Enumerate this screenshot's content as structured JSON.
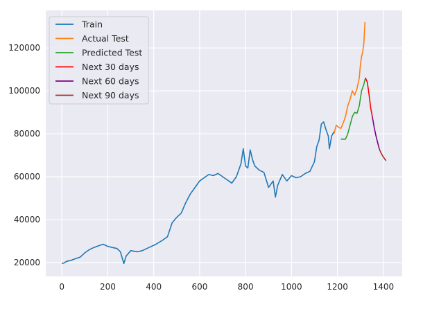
{
  "chart_data": {
    "type": "line",
    "title": "",
    "xlabel": "",
    "ylabel": "",
    "xlim": [
      -70,
      1482
    ],
    "ylim": [
      13500,
      137500
    ],
    "grid": true,
    "legend_placement": "top-left",
    "x_ticks": [
      0,
      200,
      400,
      600,
      800,
      1000,
      1200,
      1400
    ],
    "y_ticks": [
      20000,
      40000,
      60000,
      80000,
      100000,
      120000
    ],
    "series": [
      {
        "name": "Train",
        "color": "#1f77b4",
        "points": [
          [
            0,
            19500
          ],
          [
            10,
            19800
          ],
          [
            20,
            20500
          ],
          [
            40,
            21000
          ],
          [
            60,
            21800
          ],
          [
            80,
            22500
          ],
          [
            100,
            24500
          ],
          [
            120,
            26000
          ],
          [
            140,
            27000
          ],
          [
            160,
            27800
          ],
          [
            180,
            28500
          ],
          [
            200,
            27500
          ],
          [
            220,
            27000
          ],
          [
            240,
            26500
          ],
          [
            255,
            25000
          ],
          [
            270,
            19500
          ],
          [
            280,
            23000
          ],
          [
            300,
            25500
          ],
          [
            330,
            25000
          ],
          [
            350,
            25500
          ],
          [
            380,
            27000
          ],
          [
            410,
            28500
          ],
          [
            440,
            30500
          ],
          [
            460,
            32000
          ],
          [
            480,
            38500
          ],
          [
            500,
            41000
          ],
          [
            520,
            43000
          ],
          [
            540,
            48000
          ],
          [
            560,
            52000
          ],
          [
            580,
            55000
          ],
          [
            600,
            58000
          ],
          [
            620,
            59500
          ],
          [
            640,
            61000
          ],
          [
            660,
            60500
          ],
          [
            680,
            61500
          ],
          [
            700,
            60000
          ],
          [
            720,
            58500
          ],
          [
            740,
            57000
          ],
          [
            760,
            60000
          ],
          [
            780,
            66000
          ],
          [
            790,
            73000
          ],
          [
            800,
            65000
          ],
          [
            810,
            64000
          ],
          [
            820,
            72500
          ],
          [
            830,
            68000
          ],
          [
            840,
            65000
          ],
          [
            860,
            63000
          ],
          [
            880,
            62000
          ],
          [
            900,
            55000
          ],
          [
            920,
            58000
          ],
          [
            930,
            50500
          ],
          [
            940,
            56000
          ],
          [
            960,
            61000
          ],
          [
            980,
            58000
          ],
          [
            1000,
            60500
          ],
          [
            1020,
            59500
          ],
          [
            1040,
            60000
          ],
          [
            1060,
            61500
          ],
          [
            1080,
            62500
          ],
          [
            1100,
            67000
          ],
          [
            1110,
            74000
          ],
          [
            1120,
            77000
          ],
          [
            1130,
            84500
          ],
          [
            1140,
            85500
          ],
          [
            1150,
            82000
          ],
          [
            1160,
            79000
          ],
          [
            1165,
            73000
          ],
          [
            1175,
            79000
          ],
          [
            1185,
            81000
          ]
        ]
      },
      {
        "name": "Actual Test",
        "color": "#ff7f0e",
        "points": [
          [
            1185,
            80000
          ],
          [
            1195,
            84000
          ],
          [
            1205,
            83000
          ],
          [
            1215,
            82500
          ],
          [
            1225,
            85000
          ],
          [
            1235,
            88000
          ],
          [
            1245,
            93000
          ],
          [
            1255,
            96000
          ],
          [
            1265,
            100000
          ],
          [
            1275,
            98000
          ],
          [
            1285,
            101000
          ],
          [
            1295,
            106000
          ],
          [
            1300,
            112000
          ],
          [
            1305,
            116000
          ],
          [
            1310,
            118000
          ],
          [
            1315,
            122000
          ],
          [
            1320,
            132000
          ]
        ]
      },
      {
        "name": "Predicted Test",
        "color": "#2ca02c",
        "points": [
          [
            1215,
            77500
          ],
          [
            1235,
            77500
          ],
          [
            1245,
            80000
          ],
          [
            1255,
            84000
          ],
          [
            1265,
            88000
          ],
          [
            1275,
            90000
          ],
          [
            1285,
            89500
          ],
          [
            1295,
            93000
          ],
          [
            1305,
            100000
          ],
          [
            1315,
            103000
          ],
          [
            1322,
            106000
          ]
        ]
      },
      {
        "name": "Next 30 days",
        "color": "#ff0000",
        "points": [
          [
            1322,
            106000
          ],
          [
            1330,
            104000
          ],
          [
            1338,
            98000
          ],
          [
            1345,
            92000
          ],
          [
            1352,
            88000
          ]
        ]
      },
      {
        "name": "Next 60 days",
        "color": "#800080",
        "points": [
          [
            1352,
            88000
          ],
          [
            1360,
            83000
          ],
          [
            1368,
            79000
          ],
          [
            1376,
            75500
          ],
          [
            1382,
            73000
          ]
        ]
      },
      {
        "name": "Next 90 days",
        "color": "#a52a2a",
        "points": [
          [
            1382,
            73000
          ],
          [
            1390,
            71000
          ],
          [
            1398,
            69500
          ],
          [
            1406,
            68200
          ],
          [
            1412,
            67500
          ]
        ]
      }
    ]
  }
}
